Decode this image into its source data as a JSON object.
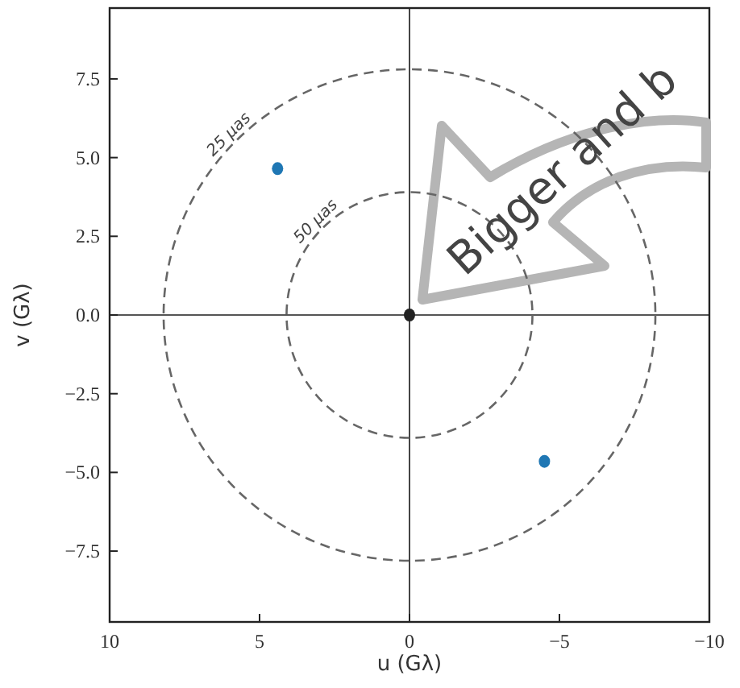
{
  "chart_data": {
    "type": "scatter",
    "xlabel": "u (Gλ)",
    "ylabel": "v (Gλ)",
    "xlim": [
      10,
      -10
    ],
    "ylim": [
      -9.75,
      9.75
    ],
    "xticks": [
      10,
      5,
      0,
      {
        "value": -5,
        "label": "−5"
      },
      {
        "value": -10,
        "label": "−10"
      }
    ],
    "yticks": [
      {
        "value": -7.5,
        "label": "−7.5"
      },
      {
        "value": -5,
        "label": "−5.0"
      },
      {
        "value": -2.5,
        "label": "−2.5"
      },
      {
        "value": 0,
        "label": "0.0"
      },
      {
        "value": 2.5,
        "label": "2.5"
      },
      {
        "value": 5,
        "label": "5.0"
      },
      {
        "value": 7.5,
        "label": "7.5"
      }
    ],
    "grid": false,
    "marker": "circle",
    "ref_lines": [
      {
        "axis": "x",
        "value": 0,
        "color": "#444444"
      },
      {
        "axis": "y",
        "value": 0,
        "color": "#555555"
      }
    ],
    "series": [
      {
        "color": "#1f77b4",
        "x": [
          4.4,
          -4.5
        ],
        "values": [
          4.65,
          -4.65
        ]
      },
      {
        "color": "#222222",
        "x": [
          0
        ],
        "values": [
          0
        ]
      }
    ],
    "annotations": [
      "25 μas",
      "50 μas",
      "Bigger and b"
    ]
  }
}
